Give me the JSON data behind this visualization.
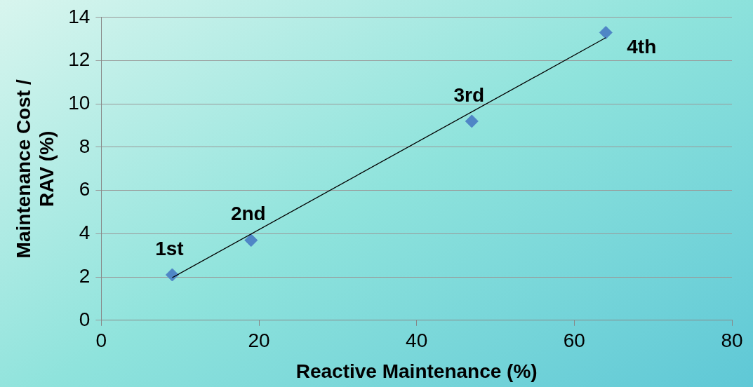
{
  "chart_data": {
    "type": "scatter",
    "xlabel": "Reactive Maintenance (%)",
    "ylabel": "Maintenance Cost / RAV (%)",
    "series": [
      {
        "type": "scatter",
        "color": "#4f86c6",
        "x": [
          9,
          19,
          47,
          64
        ],
        "values": [
          2.1,
          3.7,
          9.2,
          13.3
        ],
        "marker": "diamond"
      },
      {
        "type": "line",
        "color": "#000000",
        "x": [
          9,
          64
        ],
        "values": [
          1.97,
          13.06
        ],
        "marker": "none"
      }
    ],
    "xlim": [
      0,
      80
    ],
    "xticks": [
      0,
      20,
      40,
      60,
      80
    ],
    "ylim": [
      0,
      14
    ],
    "yticks": [
      0,
      2,
      4,
      6,
      8,
      10,
      12,
      14
    ],
    "grid": "y",
    "legend": false,
    "annotations": [
      {
        "text": "1st",
        "x": 9,
        "y": 2.1
      },
      {
        "text": "2nd",
        "x": 19,
        "y": 3.7
      },
      {
        "text": "3rd",
        "x": 47,
        "y": 9.2
      },
      {
        "text": "4th",
        "x": 64,
        "y": 13.3
      }
    ]
  }
}
